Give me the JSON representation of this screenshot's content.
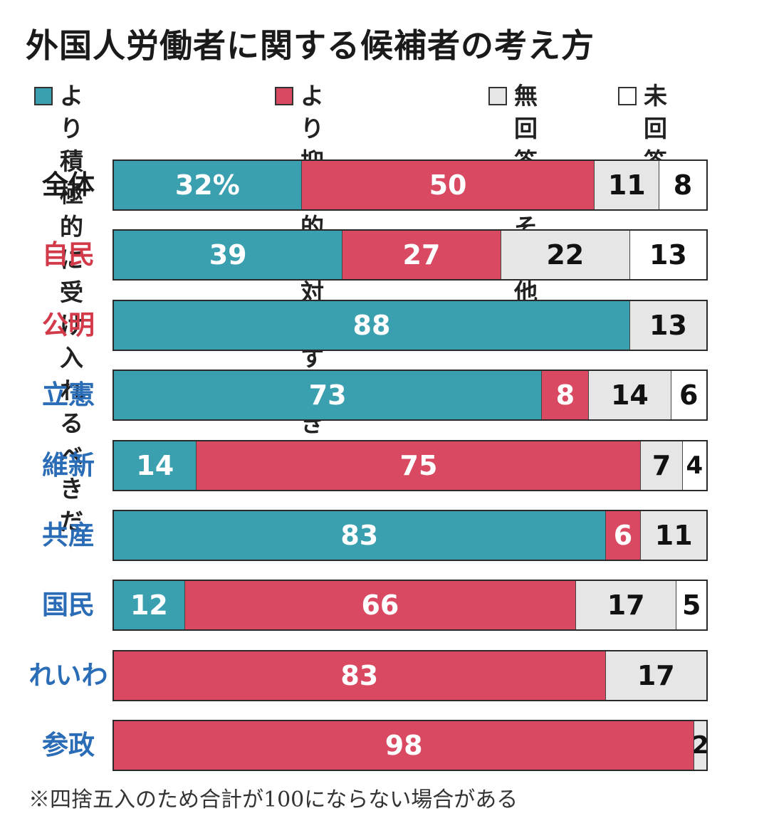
{
  "title": "外国人労働者に関する候補者の考え方",
  "colors": {
    "positive": "#3aa0b0",
    "negative": "#d94a62",
    "no_response": "#e6e6e6",
    "unanswered": "#ffffff",
    "party_red": "#d23a4a",
    "party_blue": "#2a6cb5",
    "overall_black": "#1a1a1a"
  },
  "legend": [
    {
      "key": "positive",
      "label": "より積極的に\n受け入れるべきだ"
    },
    {
      "key": "negative",
      "label": "より抑制的に\n対応すべきだ"
    },
    {
      "key": "no_response",
      "label": "無回答\n・その他"
    },
    {
      "key": "unanswered",
      "label": "未回答"
    }
  ],
  "chart_data": {
    "type": "bar",
    "orientation": "horizontal",
    "stacked": true,
    "percent_label_first": "32%",
    "series_names": [
      "より積極的に受け入れるべきだ",
      "より抑制的に対応すべきだ",
      "無回答・その他",
      "未回答"
    ],
    "rows": [
      {
        "label": "全体",
        "group": "overall",
        "values": [
          32,
          50,
          11,
          8
        ]
      },
      {
        "label": "自民",
        "group": "ruling",
        "values": [
          39,
          27,
          22,
          13
        ]
      },
      {
        "label": "公明",
        "group": "ruling",
        "values": [
          88,
          0,
          13,
          0
        ]
      },
      {
        "label": "立憲",
        "group": "opposition",
        "values": [
          73,
          8,
          14,
          6
        ]
      },
      {
        "label": "維新",
        "group": "opposition",
        "values": [
          14,
          75,
          7,
          4
        ]
      },
      {
        "label": "共産",
        "group": "opposition",
        "values": [
          83,
          6,
          11,
          0
        ]
      },
      {
        "label": "国民",
        "group": "opposition",
        "values": [
          12,
          66,
          17,
          5
        ]
      },
      {
        "label": "れいわ",
        "group": "opposition",
        "values": [
          0,
          83,
          17,
          0
        ]
      },
      {
        "label": "参政",
        "group": "opposition",
        "values": [
          0,
          98,
          2,
          0
        ]
      }
    ]
  },
  "note": "※四捨五入のため合計が100にならない場合がある"
}
